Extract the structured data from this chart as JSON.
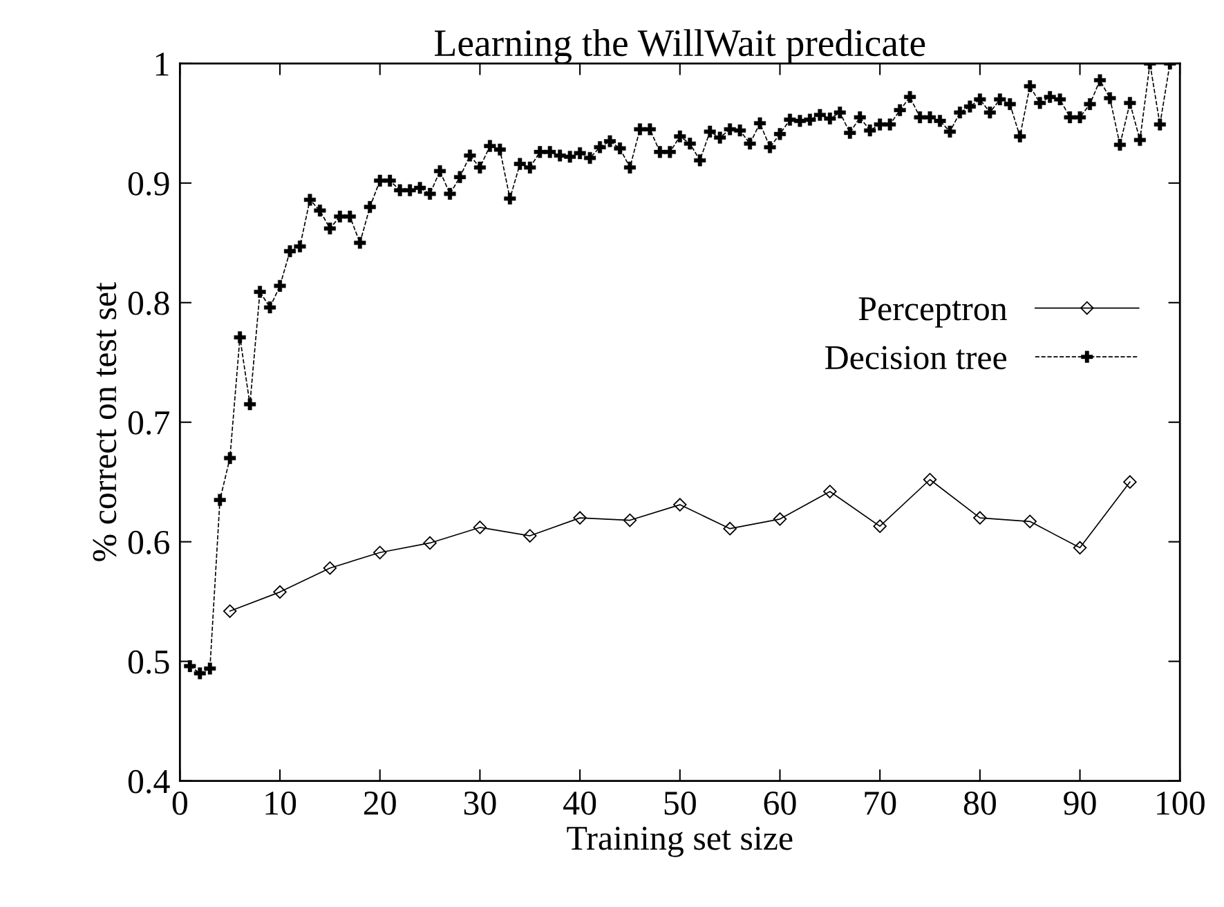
{
  "chart_data": {
    "type": "line",
    "title": "Learning the WillWait predicate",
    "xlabel": "Training set size",
    "ylabel": "% correct on test set",
    "xlim": [
      0,
      100
    ],
    "xticks": [
      0,
      10,
      20,
      30,
      40,
      50,
      60,
      70,
      80,
      90,
      100
    ],
    "ylim": [
      0.4,
      1
    ],
    "yticks": [
      0.4,
      0.5,
      0.6,
      0.7,
      0.8,
      0.9,
      1
    ],
    "grid": false,
    "legend": "right",
    "series": [
      {
        "name": "Perceptron",
        "color": "#000000",
        "marker": "diamond",
        "line_style": "solid",
        "x": [
          5,
          10,
          15,
          20,
          25,
          30,
          35,
          40,
          45,
          50,
          55,
          60,
          65,
          70,
          75,
          80,
          85,
          90,
          95
        ],
        "values": [
          0.542,
          0.558,
          0.578,
          0.591,
          0.599,
          0.612,
          0.605,
          0.62,
          0.618,
          0.631,
          0.611,
          0.619,
          0.642,
          0.613,
          0.652,
          0.62,
          0.617,
          0.595,
          0.65
        ]
      },
      {
        "name": "Decision tree",
        "color": "#000000",
        "marker": "cross",
        "line_style": "dashed",
        "x": [
          1,
          2,
          3,
          4,
          5,
          6,
          7,
          8,
          9,
          10,
          11,
          12,
          13,
          14,
          15,
          16,
          17,
          18,
          19,
          20,
          21,
          22,
          23,
          24,
          25,
          26,
          27,
          28,
          29,
          30,
          31,
          32,
          33,
          34,
          35,
          36,
          37,
          38,
          39,
          40,
          41,
          42,
          43,
          44,
          45,
          46,
          47,
          48,
          49,
          50,
          51,
          52,
          53,
          54,
          55,
          56,
          57,
          58,
          59,
          60,
          61,
          62,
          63,
          64,
          65,
          66,
          67,
          68,
          69,
          70,
          71,
          72,
          73,
          74,
          75,
          76,
          77,
          78,
          79,
          80,
          81,
          82,
          83,
          84,
          85,
          86,
          87,
          88,
          89,
          90,
          91,
          92,
          93,
          94,
          95,
          96,
          97,
          98,
          99
        ],
        "values": [
          0.496,
          0.49,
          0.494,
          0.635,
          0.67,
          0.771,
          0.715,
          0.809,
          0.796,
          0.814,
          0.843,
          0.847,
          0.886,
          0.877,
          0.862,
          0.872,
          0.872,
          0.85,
          0.88,
          0.902,
          0.902,
          0.894,
          0.894,
          0.896,
          0.891,
          0.91,
          0.891,
          0.905,
          0.923,
          0.913,
          0.931,
          0.928,
          0.887,
          0.916,
          0.913,
          0.926,
          0.926,
          0.923,
          0.922,
          0.925,
          0.921,
          0.93,
          0.935,
          0.929,
          0.913,
          0.945,
          0.945,
          0.926,
          0.926,
          0.939,
          0.933,
          0.919,
          0.943,
          0.938,
          0.945,
          0.944,
          0.933,
          0.95,
          0.93,
          0.941,
          0.953,
          0.952,
          0.953,
          0.957,
          0.954,
          0.959,
          0.942,
          0.955,
          0.944,
          0.949,
          0.949,
          0.961,
          0.972,
          0.955,
          0.955,
          0.952,
          0.943,
          0.959,
          0.964,
          0.97,
          0.959,
          0.97,
          0.966,
          0.939,
          0.981,
          0.967,
          0.972,
          0.97,
          0.955,
          0.955,
          0.966,
          0.986,
          0.971,
          0.932,
          0.967,
          0.936,
          1.0,
          0.949,
          1.0
        ]
      }
    ]
  }
}
